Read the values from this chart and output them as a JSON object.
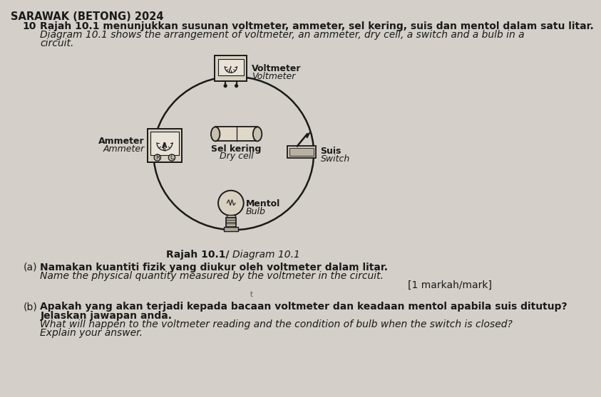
{
  "bg_color": "#d4cfc8",
  "header": "SARAWAK (BETONG) 2024",
  "q_num": "10",
  "q_text_malay": "Rajah 10.1 menunjukkan susunan voltmeter, ammeter, sel kering, suis dan mentol dalam satu litar.",
  "q_text_english_1": "Diagram 10.1 shows the arrangement of voltmeter, an ammeter, dry cell, a switch and a bulb in a",
  "q_text_english_2": "circuit.",
  "diagram_label_bold": "Rajah 10.1/ ",
  "diagram_label_italic": "Diagram 10.1",
  "part_a_label": "(a)",
  "part_a_malay": "Namakan kuantiti fizik yang diukur oleh voltmeter dalam litar.",
  "part_a_english": "Name the physical quantity measured by the voltmeter in the circuit.",
  "part_a_mark": "[1 markah/mark]",
  "part_b_label": "(b)",
  "part_b_malay_1": "Apakah yang akan terjadi kepada bacaan voltmeter dan keadaan mentol apabila suis ditutup?",
  "part_b_malay_2": "Jelaskan jawapan anda.",
  "part_b_english_1": "What will happen to the voltmeter reading and the condition of bulb when the switch is closed?",
  "part_b_english_2": "Explain your answer.",
  "label_voltmeter_malay": "Voltmeter",
  "label_voltmeter_english": "Voltmeter",
  "label_ammeter_malay": "Ammeter",
  "label_ammeter_english": "Ammeter",
  "label_drycell_malay": "Sel kering",
  "label_drycell_english": "Dry cell",
  "label_switch_malay": "Suis",
  "label_switch_english": "Switch",
  "label_bulb_malay": "Mentol",
  "label_bulb_english": "Bulb",
  "text_color": "#1a1a1a",
  "circuit_color": "#1a1a1a",
  "circuit_fill": "#ccc5b8",
  "component_fill": "#d8d0c0",
  "font_size_header": 10.5,
  "font_size_body": 10,
  "font_size_label": 9,
  "font_size_small": 8
}
